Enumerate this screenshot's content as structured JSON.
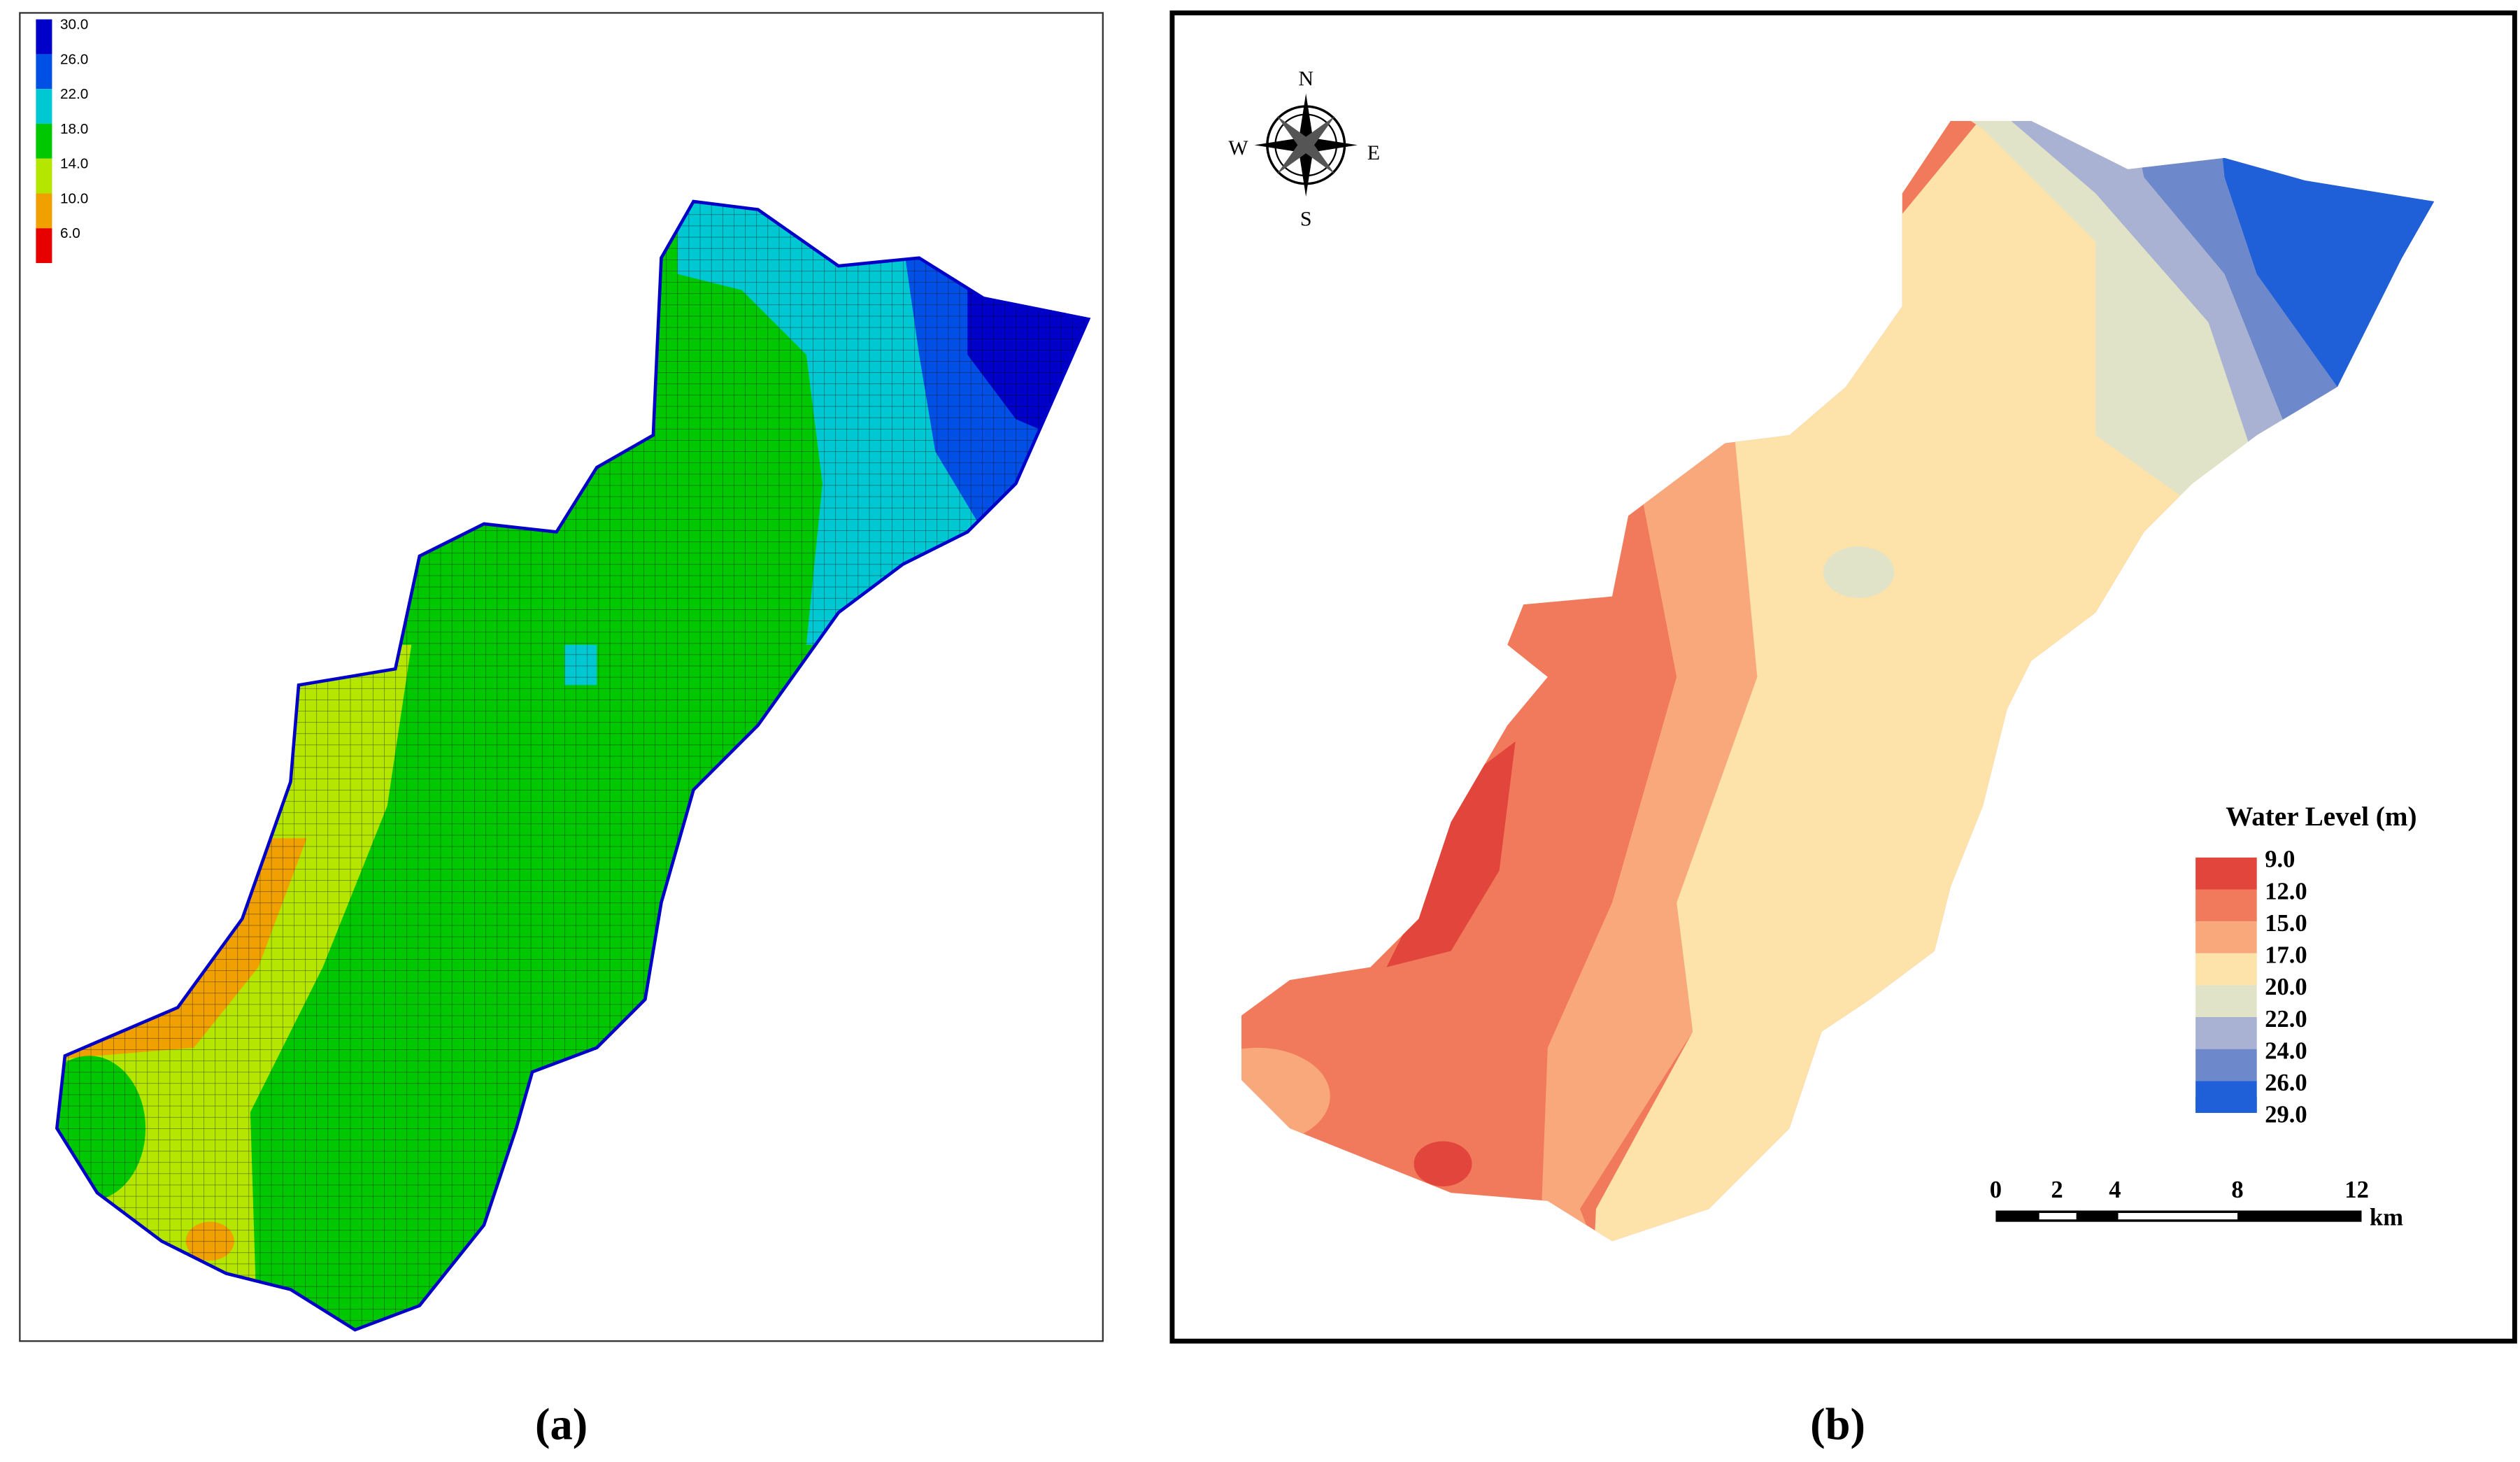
{
  "panel_a": {
    "caption": "(a)",
    "legend": [
      {
        "label": "30.0",
        "color": "#0000c8"
      },
      {
        "label": "26.0",
        "color": "#0050e6"
      },
      {
        "label": "22.0",
        "color": "#00c8d2"
      },
      {
        "label": "18.0",
        "color": "#00c800"
      },
      {
        "label": "14.0",
        "color": "#b4e600"
      },
      {
        "label": "10.0",
        "color": "#f0a000"
      },
      {
        "label": "6.0",
        "color": "#e60000"
      }
    ]
  },
  "panel_b": {
    "caption": "(b)",
    "legend_title": "Water Level (m)",
    "legend": [
      {
        "label": "9.0",
        "color": "#e2453b"
      },
      {
        "label": "12.0",
        "color": "#f27a5c"
      },
      {
        "label": "15.0",
        "color": "#f9a87c"
      },
      {
        "label": "17.0",
        "color": "#fde2a9"
      },
      {
        "label": "20.0",
        "color": "#e1e3c9"
      },
      {
        "label": "22.0",
        "color": "#a9b2d2"
      },
      {
        "label": "24.0",
        "color": "#6e89cb"
      },
      {
        "label": "26.0",
        "color": "#1f5fd7"
      },
      {
        "label": "29.0",
        "color": "#1f5fd7"
      }
    ],
    "compass": {
      "n": "N",
      "s": "S",
      "w": "W",
      "e": "E"
    },
    "scale_bar": {
      "ticks": [
        "0",
        "2",
        "4",
        "8",
        "12"
      ],
      "unit": "km"
    }
  }
}
